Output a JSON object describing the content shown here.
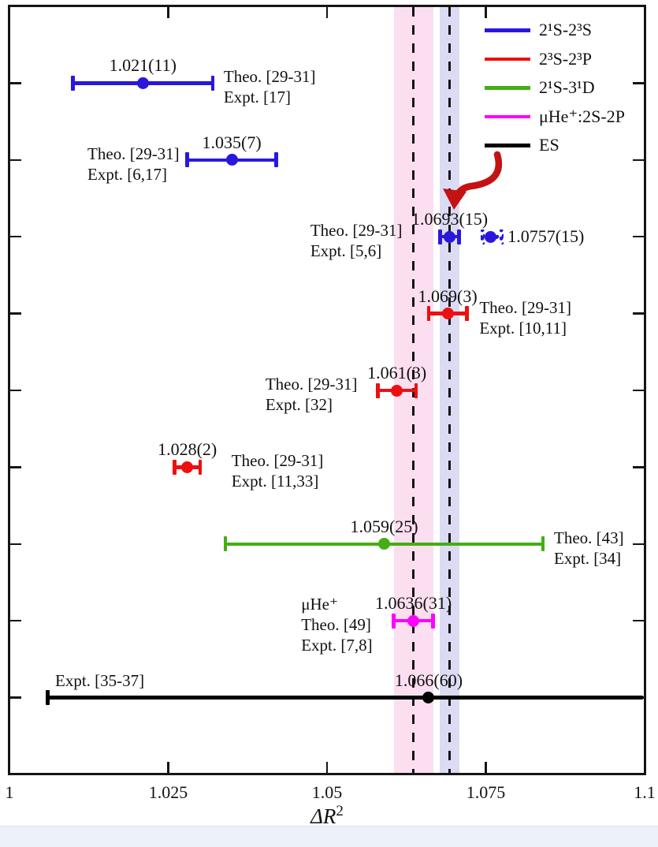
{
  "chart_data": {
    "type": "scatter",
    "subtype": "horizontal-errorbar",
    "xlabel": "ΔR²",
    "xlabel_base": "ΔR",
    "xlabel_sup": "2",
    "xlim": [
      1.0,
      1.1
    ],
    "grid": false,
    "xticks": [
      {
        "value": 1.0,
        "label": "1"
      },
      {
        "value": 1.025,
        "label": "1.025"
      },
      {
        "value": 1.05,
        "label": "1.05"
      },
      {
        "value": 1.075,
        "label": "1.075"
      },
      {
        "value": 1.1,
        "label": "1.1"
      }
    ],
    "n_rows": 9,
    "palette": {
      "blue": "#2a17dd",
      "red": "#ee0f0f",
      "green": "#44ae14",
      "magenta": "#ff00ff",
      "black": "#000000"
    },
    "legend": {
      "position": "top-right",
      "items": [
        {
          "label": "2¹S-2³S",
          "color_key": "blue"
        },
        {
          "label": "2³S-2³P",
          "color_key": "red"
        },
        {
          "label": "2¹S-3¹D",
          "color_key": "green"
        },
        {
          "label": "μHe⁺:2S-2P",
          "color_key": "magenta"
        },
        {
          "label": "ES",
          "color_key": "black"
        }
      ]
    },
    "bands": [
      {
        "center": 1.0636,
        "half_width": 0.0031,
        "color": "#fbdff0"
      },
      {
        "center": 1.0693,
        "half_width": 0.0015,
        "color": "#dcdbf4"
      }
    ],
    "dashed_lines": [
      1.0636,
      1.0693
    ],
    "points": [
      {
        "row": 1,
        "value": 1.021,
        "err": 0.011,
        "display": "1.021(11)",
        "color_key": "blue",
        "style": "solid",
        "value_pos": "above",
        "refs": {
          "lines": [
            "Theo. [29-31]",
            "Expt. [17]"
          ],
          "side": "right",
          "gap": 14
        }
      },
      {
        "row": 2,
        "value": 1.035,
        "err": 0.007,
        "display": "1.035(7)",
        "color_key": "blue",
        "style": "solid",
        "value_pos": "above",
        "refs": {
          "lines": [
            "Theo. [29-31]",
            "Expt. [6,17]"
          ],
          "side": "left",
          "gap": 10
        }
      },
      {
        "row": 3,
        "value": 1.0693,
        "err": 0.0015,
        "display": "1.0693(15)",
        "color_key": "blue",
        "style": "solid",
        "value_pos": "above",
        "refs": {
          "lines": [
            "Theo. [29-31]",
            "Expt. [5,6]"
          ],
          "side": "left",
          "gap": 48
        }
      },
      {
        "row": 3,
        "value": 1.0757,
        "err": 0.0015,
        "display": "1.0757(15)",
        "color_key": "blue",
        "style": "dotted",
        "value_pos": "right",
        "refs": null
      },
      {
        "row": 4,
        "value": 1.069,
        "err": 0.003,
        "display": "1.069(3)",
        "color_key": "red",
        "style": "solid",
        "value_pos": "above",
        "refs": {
          "lines": [
            "Theo. [29-31]",
            "Expt. [10,11]"
          ],
          "side": "right",
          "gap": 16
        }
      },
      {
        "row": 5,
        "value": 1.061,
        "err": 0.003,
        "display": "1.061(3)",
        "color_key": "red",
        "style": "solid",
        "value_pos": "above",
        "refs": {
          "lines": [
            "Theo. [29-31]",
            "Expt. [32]"
          ],
          "side": "left",
          "gap": 26
        }
      },
      {
        "row": 6,
        "value": 1.028,
        "err": 0.002,
        "display": "1.028(2)",
        "color_key": "red",
        "style": "solid",
        "value_pos": "above",
        "refs": {
          "lines": [
            "Theo. [29-31]",
            "Expt. [11,33]"
          ],
          "side": "right",
          "gap": 40
        }
      },
      {
        "row": 7,
        "value": 1.059,
        "err": 0.025,
        "display": "1.059(25)",
        "color_key": "green",
        "style": "solid",
        "value_pos": "above",
        "refs": {
          "lines": [
            "Theo. [43]",
            "Expt. [34]"
          ],
          "side": "right",
          "gap": 14
        }
      },
      {
        "row": 8,
        "value": 1.0636,
        "err": 0.0031,
        "display": "1.0636(31)",
        "color_key": "magenta",
        "style": "solid",
        "value_pos": "above",
        "refs": {
          "lines": [
            "μHe⁺",
            "Theo. [49]",
            "Expt. [7,8]"
          ],
          "side": "left",
          "gap": 27
        }
      },
      {
        "row": 9,
        "value": 1.066,
        "err": 0.06,
        "display": "1.066(60)",
        "color_key": "black",
        "style": "solid",
        "value_pos": "above",
        "clip_right": true,
        "refs": {
          "lines": [
            "Expt. [35-37]"
          ],
          "side": "above-left",
          "x": 70
        }
      }
    ],
    "annotation_arrow": {
      "color": "#c41212",
      "points_to_value": 1.0693,
      "points_to_row": 3
    }
  },
  "footer": {
    "strip_color": "#edf1f8"
  }
}
